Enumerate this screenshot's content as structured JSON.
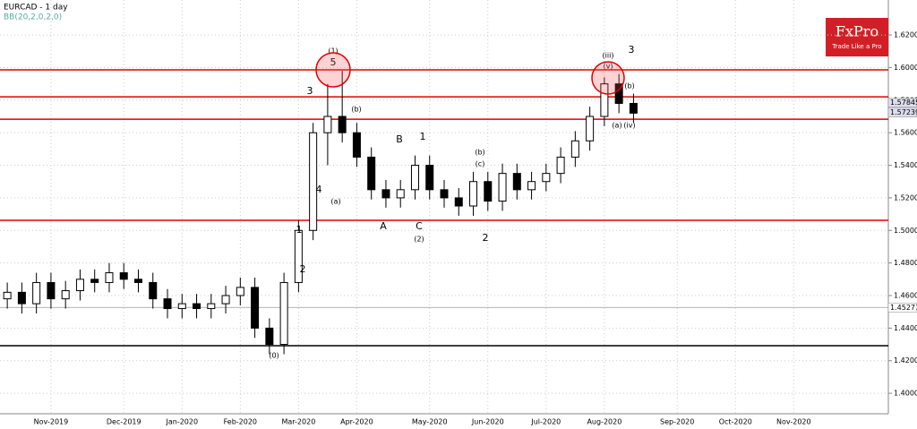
{
  "chart_data": {
    "type": "candlestick",
    "title": "EURCAD - 1 day",
    "subtitle": "BB(20,2,0,2,0)",
    "logo": "FxPro",
    "slogan": "Trade Like a Pro",
    "categories": [
      null,
      null,
      null,
      "Nov-2019",
      null,
      null,
      null,
      null,
      "Dec-2019",
      null,
      null,
      null,
      "Jan-2020",
      null,
      null,
      null,
      "Feb-2020",
      null,
      null,
      null,
      "Mar-2020",
      null,
      null,
      null,
      "Apr-2020",
      null,
      null,
      null,
      null,
      "May-2020",
      null,
      null,
      null,
      "Jun-2020",
      null,
      null,
      null,
      "Jul-2020",
      null,
      null,
      null,
      "Aug-2020",
      null,
      null,
      null,
      null,
      "Sep-2020",
      null,
      null,
      null,
      "Oct-2020",
      null,
      null,
      null,
      "Nov-2020",
      null,
      null,
      null,
      null,
      null,
      null
    ],
    "open": [
      1.458,
      1.462,
      1.455,
      1.468,
      1.458,
      1.463,
      1.47,
      1.468,
      1.474,
      1.47,
      1.468,
      1.458,
      1.452,
      1.455,
      1.452,
      1.455,
      1.46,
      1.465,
      1.44,
      1.43,
      1.468,
      1.5,
      1.56,
      1.57,
      1.56,
      1.545,
      1.525,
      1.52,
      1.525,
      1.54,
      1.525,
      1.52,
      1.515,
      1.53,
      1.518,
      1.535,
      1.525,
      1.53,
      1.535,
      1.545,
      1.555,
      1.57,
      1.59,
      1.578,
      null,
      null,
      null,
      null,
      null,
      null,
      null,
      null,
      null,
      null,
      null,
      null,
      null,
      null,
      null,
      null,
      null
    ],
    "high": [
      1.468,
      1.468,
      1.474,
      1.474,
      1.469,
      1.476,
      1.476,
      1.48,
      1.48,
      1.476,
      1.474,
      1.464,
      1.461,
      1.461,
      1.461,
      1.466,
      1.471,
      1.471,
      1.446,
      1.474,
      1.506,
      1.566,
      1.59,
      1.598,
      1.566,
      1.551,
      1.531,
      1.531,
      1.546,
      1.546,
      1.531,
      1.526,
      1.536,
      1.536,
      1.541,
      1.541,
      1.536,
      1.541,
      1.551,
      1.561,
      1.576,
      1.594,
      1.596,
      1.584,
      null,
      null,
      null,
      null,
      null,
      null,
      null,
      null,
      null,
      null,
      null,
      null,
      null,
      null,
      null,
      null,
      null
    ],
    "low": [
      1.452,
      1.449,
      1.449,
      1.452,
      1.452,
      1.457,
      1.462,
      1.462,
      1.464,
      1.462,
      1.452,
      1.446,
      1.446,
      1.446,
      1.446,
      1.449,
      1.454,
      1.434,
      1.424,
      1.424,
      1.462,
      1.494,
      1.54,
      1.554,
      1.539,
      1.519,
      1.514,
      1.514,
      1.519,
      1.519,
      1.514,
      1.509,
      1.509,
      1.512,
      1.512,
      1.519,
      1.519,
      1.524,
      1.529,
      1.539,
      1.549,
      1.564,
      1.572,
      1.566,
      null,
      null,
      null,
      null,
      null,
      null,
      null,
      null,
      null,
      null,
      null,
      null,
      null,
      null,
      null,
      null,
      null
    ],
    "close": [
      1.462,
      1.455,
      1.468,
      1.458,
      1.463,
      1.47,
      1.468,
      1.474,
      1.47,
      1.468,
      1.458,
      1.452,
      1.455,
      1.452,
      1.455,
      1.46,
      1.465,
      1.44,
      1.43,
      1.468,
      1.5,
      1.56,
      1.57,
      1.56,
      1.545,
      1.525,
      1.52,
      1.525,
      1.54,
      1.525,
      1.52,
      1.515,
      1.53,
      1.518,
      1.535,
      1.525,
      1.53,
      1.535,
      1.545,
      1.555,
      1.57,
      1.59,
      1.578,
      1.572,
      null,
      null,
      null,
      null,
      null,
      null,
      null,
      null,
      null,
      null,
      null,
      null,
      null,
      null,
      null,
      null,
      null
    ],
    "ylim": [
      1.3874,
      1.6415
    ],
    "yticks": [
      {
        "value": 1.62,
        "label": "1.62000"
      },
      {
        "value": 1.6,
        "label": "1.60000"
      },
      {
        "value": 1.58,
        "label": "1.58000"
      },
      {
        "value": 1.56,
        "label": "1.56000"
      },
      {
        "value": 1.54,
        "label": "1.54000"
      },
      {
        "value": 1.52,
        "label": "1.52000"
      },
      {
        "value": 1.5,
        "label": "1.50000"
      },
      {
        "value": 1.48,
        "label": "1.48000"
      },
      {
        "value": 1.46,
        "label": "1.46000"
      },
      {
        "value": 1.44,
        "label": "1.44000"
      },
      {
        "value": 1.42,
        "label": "1.42000"
      },
      {
        "value": 1.4,
        "label": "1.40000"
      }
    ],
    "levels": [
      {
        "value": 1.5986,
        "color": "#e00000"
      },
      {
        "value": 1.582,
        "color": "#e00000"
      },
      {
        "value": 1.5683,
        "color": "#e00000"
      },
      {
        "value": 1.5062,
        "color": "#e00000"
      },
      {
        "value": 1.4292,
        "color": "#000000"
      }
    ],
    "price_marks": [
      {
        "value": 1.57845,
        "label": "1.57845"
      },
      {
        "value": 1.57239,
        "label": "1.57239"
      },
      {
        "value": 1.45271,
        "label": "1.45271"
      }
    ],
    "annotations": [
      "(1)",
      "5",
      "3",
      "4",
      "1",
      "2",
      "(0)",
      "A",
      "B",
      "C",
      "(2)",
      "1",
      "2",
      "3",
      "(v)",
      "(iii)",
      "(b)",
      "(b)",
      "(a)",
      "(iv)",
      "(a)",
      "(b)",
      "(c)"
    ],
    "grid": true
  }
}
